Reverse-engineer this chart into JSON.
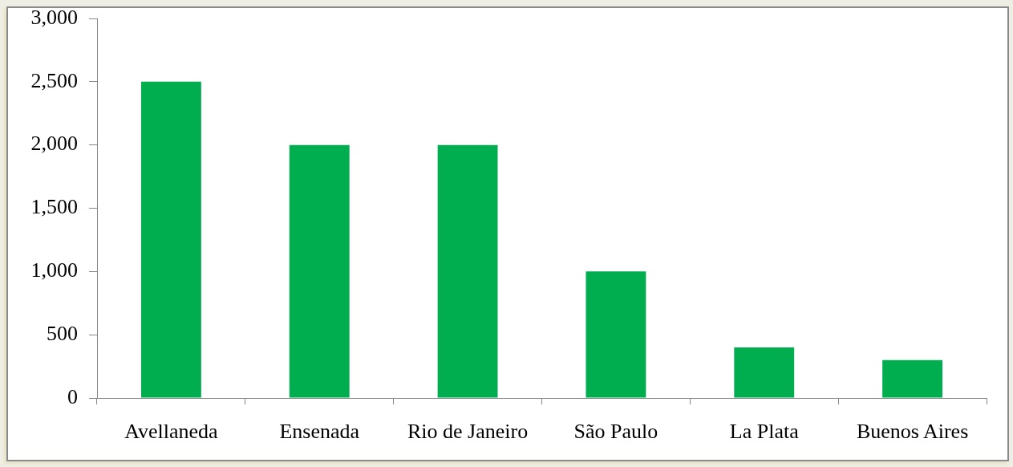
{
  "chart_data": {
    "type": "bar",
    "categories": [
      "Avellaneda",
      "Ensenada",
      "Rio de Janeiro",
      "São Paulo",
      "La Plata",
      "Buenos Aires"
    ],
    "values": [
      2500,
      2000,
      2000,
      1000,
      400,
      300
    ],
    "color": "#00ad4f",
    "ylim": [
      0,
      3000
    ],
    "yticks": [
      0,
      500,
      {
        "value": 1000,
        "label": "1,000"
      },
      {
        "value": 1500,
        "label": "1,500"
      },
      {
        "value": 2000,
        "label": "2,000"
      },
      {
        "value": 2500,
        "label": "2,500"
      },
      {
        "value": 3000,
        "label": "3,000"
      }
    ],
    "grid": false
  }
}
